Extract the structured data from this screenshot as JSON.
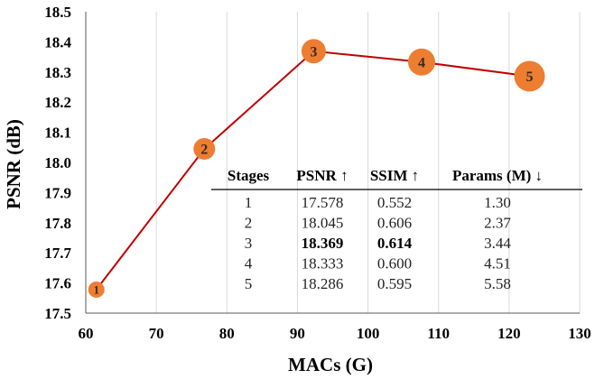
{
  "chart_data": {
    "type": "line",
    "xlabel": "MACs (G)",
    "ylabel": "PSNR (dB)",
    "xlim": [
      60,
      130
    ],
    "ylim": [
      17.5,
      18.5
    ],
    "x_ticks": [
      "60",
      "70",
      "80",
      "90",
      "100",
      "110",
      "120",
      "130"
    ],
    "y_ticks": [
      "17.5",
      "17.6",
      "17.7",
      "17.8",
      "17.9",
      "18.0",
      "18.1",
      "18.2",
      "18.3",
      "18.4",
      "18.5"
    ],
    "grid": "vertical",
    "series": [
      {
        "points": [
          {
            "label": "1",
            "x": 61.5,
            "y": 17.578
          },
          {
            "label": "2",
            "x": 76.8,
            "y": 18.045
          },
          {
            "label": "3",
            "x": 92.3,
            "y": 18.369
          },
          {
            "label": "4",
            "x": 107.6,
            "y": 18.333
          },
          {
            "label": "5",
            "x": 122.9,
            "y": 18.286
          }
        ]
      }
    ],
    "colors": {
      "line": "#c00000",
      "marker": "#ed7d31"
    },
    "table": {
      "headers": [
        "Stages",
        "PSNR ↑",
        "SSIM ↑",
        "Params (M) ↓"
      ],
      "rows": [
        [
          "1",
          "17.578",
          "0.552",
          "1.30"
        ],
        [
          "2",
          "18.045",
          "0.606",
          "2.37"
        ],
        [
          "3",
          "18.369",
          "0.614",
          "3.44"
        ],
        [
          "4",
          "18.333",
          "0.600",
          "4.51"
        ],
        [
          "5",
          "18.286",
          "0.595",
          "5.58"
        ]
      ],
      "bold_cells": [
        [
          2,
          1
        ],
        [
          2,
          2
        ]
      ]
    }
  }
}
